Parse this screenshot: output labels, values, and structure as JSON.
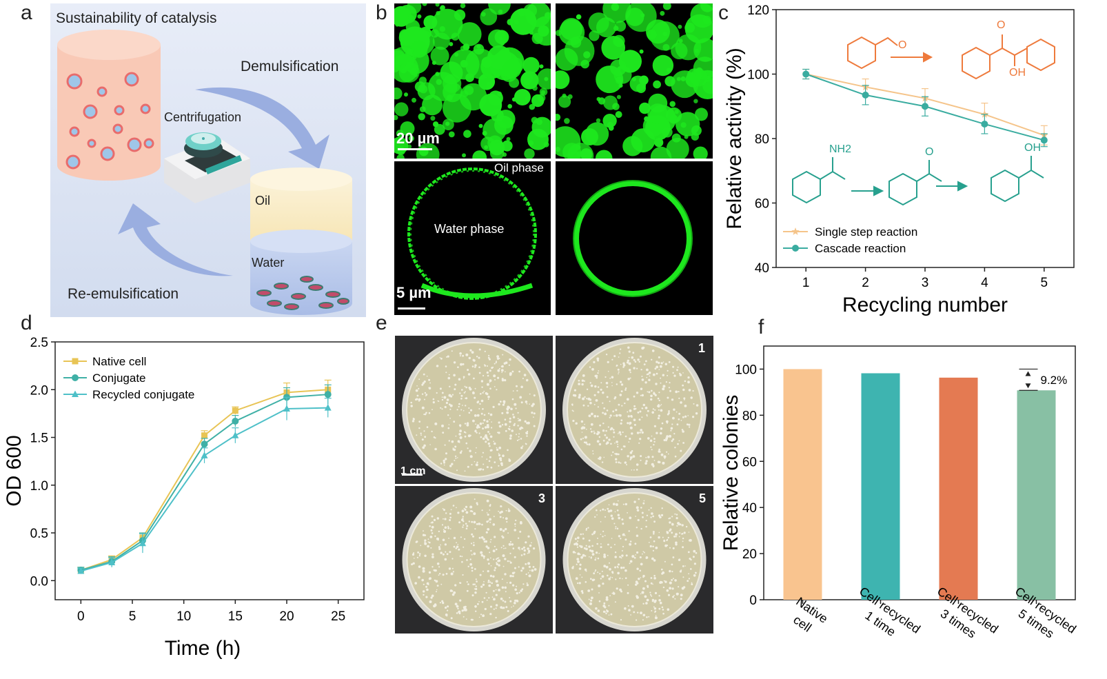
{
  "panels": {
    "a": {
      "letter": "a",
      "title": "Sustainability of catalysis",
      "demulsification": "Demulsification",
      "centrifugation": "Centrifugation",
      "oil": "Oil",
      "water": "Water",
      "reemulsification": "Re-emulsification"
    },
    "b": {
      "letter": "b",
      "scale_top": "20 µm",
      "scale_bottom": "5 µm",
      "oil_phase": "Oil phase",
      "water_phase": "Water phase"
    },
    "c": {
      "letter": "c"
    },
    "d": {
      "letter": "d"
    },
    "e": {
      "letter": "e",
      "scale": "1 cm",
      "plate_numbers": [
        "1",
        "3",
        "5"
      ]
    },
    "f": {
      "letter": "f"
    }
  },
  "colors": {
    "single_step": "#f5c48a",
    "cascade": "#3aaca0",
    "reaction_orange": "#ee7a3c",
    "reaction_teal": "#27a08e",
    "native_line": "#e8c455",
    "conjugate_line": "#3fb0a6",
    "recycled_line": "#4ec0c8",
    "bar_colors": [
      "#f9c48f",
      "#3eb4b0",
      "#e47a52",
      "#88c0a4"
    ],
    "fluor_green": "#1ee81e"
  },
  "reactions": {
    "chem_labels": [
      "O",
      "O",
      "OH",
      "NH2",
      "O",
      "OH"
    ]
  },
  "chart_data": [
    {
      "panel": "c",
      "type": "line",
      "xlabel": "Recycling number",
      "ylabel": "Relative activity (%)",
      "xlim": [
        0.5,
        5.5
      ],
      "ylim": [
        40,
        120
      ],
      "xticks": [
        1,
        2,
        3,
        4,
        5
      ],
      "yticks": [
        40,
        60,
        80,
        100,
        120
      ],
      "legend_position": "bottom-left",
      "series": [
        {
          "name": "Single step reaction",
          "marker": "star",
          "x": [
            1,
            2,
            3,
            4,
            5
          ],
          "y": [
            100,
            96,
            92.5,
            87.5,
            81
          ],
          "err": [
            1.5,
            2.5,
            3,
            3.5,
            3
          ]
        },
        {
          "name": "Cascade reaction",
          "marker": "circle",
          "x": [
            1,
            2,
            3,
            4,
            5
          ],
          "y": [
            100,
            93.5,
            90,
            84.5,
            79.5
          ],
          "err": [
            1.5,
            3,
            3,
            3,
            2
          ]
        }
      ]
    },
    {
      "panel": "d",
      "type": "line",
      "xlabel": "Time (h)",
      "ylabel": "OD 600",
      "xlim": [
        -2.5,
        27.5
      ],
      "ylim": [
        -0.2,
        2.5
      ],
      "xticks": [
        0,
        5,
        10,
        15,
        20,
        25
      ],
      "yticks": [
        0.0,
        0.5,
        1.0,
        1.5,
        2.0,
        2.5
      ],
      "ytick_labels": [
        "0.0",
        "0.5",
        "1.0",
        "1.5",
        "2.0",
        "2.5"
      ],
      "legend_position": "top-left",
      "series": [
        {
          "name": "Native cell",
          "marker": "square",
          "x": [
            0,
            3,
            6,
            12,
            15,
            20,
            24
          ],
          "y": [
            0.11,
            0.22,
            0.45,
            1.52,
            1.78,
            1.97,
            2.0
          ],
          "err": [
            0.03,
            0.04,
            0.05,
            0.05,
            0.04,
            0.1,
            0.1
          ]
        },
        {
          "name": "Conjugate",
          "marker": "circle",
          "x": [
            0,
            3,
            6,
            12,
            15,
            20,
            24
          ],
          "y": [
            0.11,
            0.2,
            0.42,
            1.43,
            1.67,
            1.92,
            1.95
          ],
          "err": [
            0.03,
            0.05,
            0.08,
            0.06,
            0.06,
            0.1,
            0.1
          ]
        },
        {
          "name": "Recycled conjugate",
          "marker": "triangle",
          "x": [
            0,
            3,
            6,
            12,
            15,
            20,
            24
          ],
          "y": [
            0.1,
            0.19,
            0.39,
            1.31,
            1.52,
            1.8,
            1.81
          ],
          "err": [
            0.03,
            0.05,
            0.1,
            0.08,
            0.08,
            0.12,
            0.1
          ]
        }
      ]
    },
    {
      "panel": "f",
      "type": "bar",
      "ylabel": "Relative colonies",
      "ylim": [
        0,
        110
      ],
      "yticks": [
        0,
        20,
        40,
        60,
        80,
        100
      ],
      "categories": [
        "Native cell",
        "Cell recycled 1 time",
        "Cell recycled 3 times",
        "Cell recycled 5 times"
      ],
      "category_lines": [
        [
          "Native",
          "cell"
        ],
        [
          "Cell recycled",
          "1 time"
        ],
        [
          "Cell recycled",
          "3 times"
        ],
        [
          "Cell recycled",
          "5 times"
        ]
      ],
      "values": [
        100,
        98.2,
        96.3,
        90.8
      ],
      "annotation": "9.2%"
    }
  ]
}
